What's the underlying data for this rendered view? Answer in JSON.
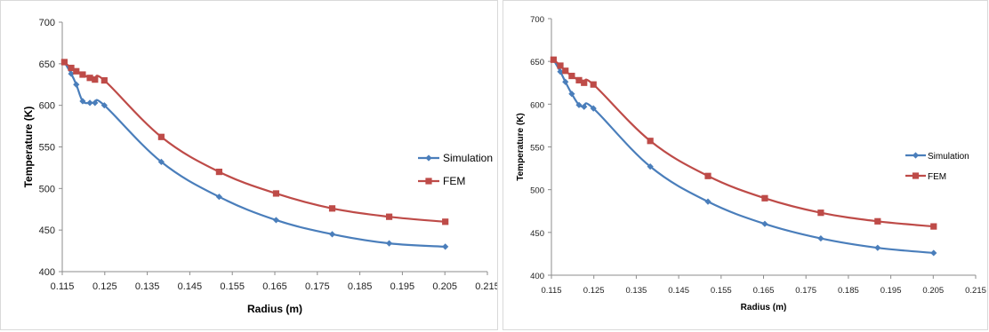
{
  "chart_data": [
    {
      "type": "line",
      "title": "",
      "xlabel": "Radius (m)",
      "ylabel": "Temperature (K)",
      "xlim": [
        0.115,
        0.215
      ],
      "ylim": [
        400,
        700
      ],
      "xticks": [
        "0.115",
        "0.125",
        "0.135",
        "0.145",
        "0.155",
        "0.165",
        "0.175",
        "0.185",
        "0.195",
        "0.205",
        "0.215"
      ],
      "yticks": [
        "400",
        "450",
        "500",
        "550",
        "600",
        "650",
        "700"
      ],
      "grid": false,
      "legend": "right",
      "series": [
        {
          "name": "Simulation",
          "color": "#4a7ebb",
          "marker": "diamond",
          "x": [
            0.1155,
            0.1171,
            0.1183,
            0.1198,
            0.1215,
            0.1227,
            0.1249,
            0.1383,
            0.1519,
            0.1653,
            0.1785,
            0.1919,
            0.2051
          ],
          "y": [
            652,
            638,
            625,
            605,
            603,
            603,
            600,
            532,
            490,
            462,
            445,
            434,
            430
          ]
        },
        {
          "name": "FEM",
          "color": "#be4b48",
          "marker": "square",
          "x": [
            0.1155,
            0.1171,
            0.1183,
            0.1198,
            0.1215,
            0.1227,
            0.1249,
            0.1383,
            0.1519,
            0.1653,
            0.1785,
            0.1919,
            0.2051
          ],
          "y": [
            652,
            645,
            641,
            637,
            633,
            631,
            630,
            562,
            520,
            494,
            476,
            466,
            460
          ]
        }
      ]
    },
    {
      "type": "line",
      "title": "",
      "xlabel": "Radius (m)",
      "ylabel": "Temperature (K)",
      "xlim": [
        0.115,
        0.215
      ],
      "ylim": [
        400,
        700
      ],
      "xticks": [
        "0.115",
        "0.125",
        "0.135",
        "0.145",
        "0.155",
        "0.165",
        "0.175",
        "0.185",
        "0.195",
        "0.205",
        "0.215"
      ],
      "yticks": [
        "400",
        "450",
        "500",
        "550",
        "600",
        "650",
        "700"
      ],
      "grid": false,
      "legend": "right",
      "series": [
        {
          "name": "Simulation",
          "color": "#4a7ebb",
          "marker": "diamond",
          "x": [
            0.1155,
            0.1171,
            0.1183,
            0.1198,
            0.1215,
            0.1227,
            0.1249,
            0.1383,
            0.1519,
            0.1653,
            0.1785,
            0.1919,
            0.2051
          ],
          "y": [
            652,
            638,
            626,
            612,
            599,
            597,
            595,
            527,
            486,
            460,
            443,
            432,
            426
          ]
        },
        {
          "name": "FEM",
          "color": "#be4b48",
          "marker": "square",
          "x": [
            0.1155,
            0.1171,
            0.1183,
            0.1198,
            0.1215,
            0.1227,
            0.1249,
            0.1383,
            0.1519,
            0.1653,
            0.1785,
            0.1919,
            0.2051
          ],
          "y": [
            652,
            645,
            639,
            633,
            628,
            625,
            623,
            557,
            516,
            490,
            473,
            463,
            457
          ]
        }
      ]
    }
  ]
}
